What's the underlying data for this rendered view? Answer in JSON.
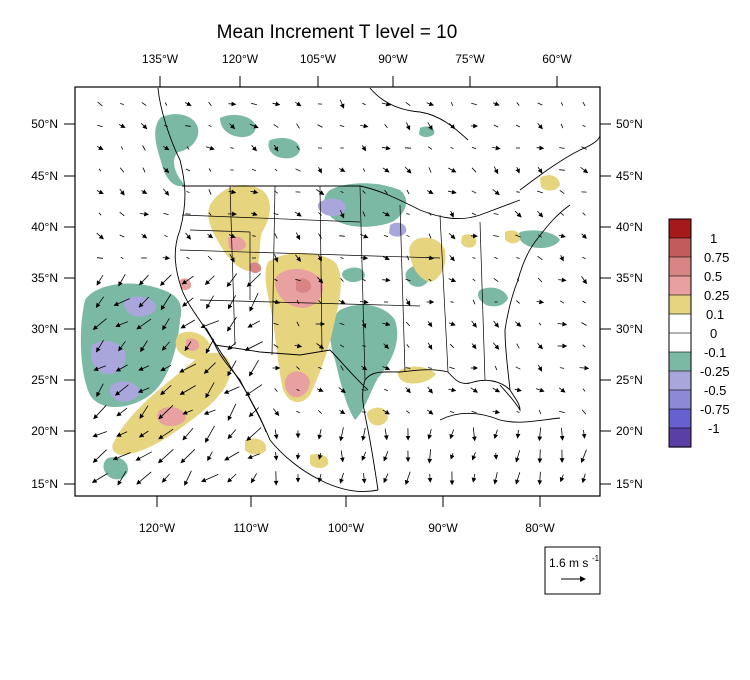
{
  "title": "Mean Increment T level = 10",
  "top_lon_labels": [
    "135°W",
    "120°W",
    "105°W",
    "90°W",
    "75°W",
    "60°W"
  ],
  "bottom_lon_labels": [
    "120°W",
    "110°W",
    "100°W",
    "90°W",
    "80°W"
  ],
  "lat_labels": [
    "50°N",
    "45°N",
    "40°N",
    "35°N",
    "30°N",
    "25°N",
    "20°N",
    "15°N"
  ],
  "colorbar": {
    "labels": [
      "1",
      "0.75",
      "0.5",
      "0.25",
      "0.1",
      "0",
      "-0.1",
      "-0.25",
      "-0.5",
      "-0.75",
      "-1"
    ],
    "colors": [
      "#a5191b",
      "#c25b5b",
      "#d98585",
      "#e8a0a0",
      "#e6d47e",
      "#ffffff",
      "#ffffff",
      "#7cb9a5",
      "#a9a6dc",
      "#8c8ad6",
      "#6760d1",
      "#5a3fa6"
    ]
  },
  "vector_reference": {
    "label": "1.6 m s",
    "exponent": "-1"
  },
  "field_colors": {
    "warm_low": "#e6d47e",
    "warm_mid": "#e8a0a0",
    "warm_high": "#d98585",
    "cool_low": "#7cb9a5",
    "cool_mid": "#a9a6dc"
  }
}
